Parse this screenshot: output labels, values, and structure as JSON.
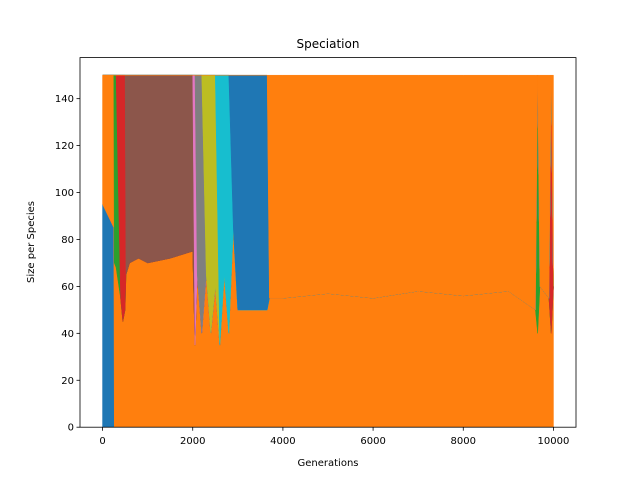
{
  "chart_data": {
    "type": "stacked_area",
    "title": "Speciation",
    "x_label": "Generations",
    "y_label": "Size per Species",
    "x": [
      0,
      250,
      260,
      300,
      400,
      450,
      500,
      520,
      600,
      800,
      1000,
      1500,
      2000,
      2050,
      2100,
      2200,
      2300,
      2400,
      2500,
      2600,
      2700,
      2800,
      2900,
      3000,
      3500,
      3650,
      3700,
      4000,
      5000,
      6000,
      7000,
      8000,
      9000,
      9600,
      9650,
      9700,
      9900,
      9950,
      10000
    ],
    "series": [
      {
        "color": "#1f77b4",
        "values": [
          95,
          85,
          0,
          0,
          0,
          0,
          0,
          0,
          0,
          0,
          0,
          0,
          0,
          0,
          0,
          0,
          0,
          0,
          0,
          0,
          0,
          0,
          0,
          0,
          0,
          0,
          0,
          0,
          0,
          0,
          0,
          0,
          0,
          0,
          0,
          0,
          0,
          0,
          0
        ]
      },
      {
        "color": "#ff7f0e",
        "values": [
          55,
          65,
          70,
          68,
          55,
          45,
          50,
          65,
          70,
          72,
          70,
          72,
          75,
          35,
          65,
          40,
          65,
          40,
          60,
          35,
          65,
          40,
          85,
          50,
          50,
          50,
          55,
          55,
          57,
          55,
          58,
          56,
          58,
          50,
          40,
          60,
          55,
          40,
          60
        ]
      },
      {
        "color": "#2ca02c",
        "values": [
          0,
          0,
          80,
          82,
          0,
          0,
          0,
          0,
          0,
          0,
          0,
          0,
          0,
          0,
          0,
          0,
          0,
          0,
          0,
          0,
          0,
          0,
          0,
          0,
          0,
          0,
          0,
          0,
          0,
          0,
          0,
          0,
          0,
          0,
          110,
          0,
          0,
          0,
          0
        ]
      },
      {
        "color": "#d62728",
        "values": [
          0,
          0,
          0,
          0,
          95,
          105,
          100,
          0,
          0,
          0,
          0,
          0,
          0,
          0,
          0,
          0,
          0,
          0,
          0,
          0,
          0,
          0,
          0,
          0,
          0,
          0,
          0,
          0,
          0,
          0,
          0,
          0,
          0,
          0,
          0,
          0,
          0,
          110,
          0
        ]
      },
      {
        "color": "#8c564b",
        "values": [
          0,
          0,
          0,
          0,
          0,
          0,
          0,
          85,
          80,
          78,
          80,
          78,
          75,
          0,
          0,
          0,
          0,
          0,
          0,
          0,
          0,
          0,
          0,
          0,
          0,
          0,
          0,
          0,
          0,
          0,
          0,
          0,
          0,
          0,
          0,
          0,
          0,
          0,
          0
        ]
      },
      {
        "color": "#e377c2",
        "values": [
          0,
          0,
          0,
          0,
          0,
          0,
          0,
          0,
          0,
          0,
          0,
          0,
          0,
          115,
          0,
          0,
          0,
          0,
          0,
          0,
          0,
          0,
          0,
          0,
          0,
          0,
          0,
          0,
          0,
          0,
          0,
          0,
          0,
          0,
          0,
          0,
          0,
          0,
          0
        ]
      },
      {
        "color": "#7f7f7f",
        "values": [
          0,
          0,
          0,
          0,
          0,
          0,
          0,
          0,
          0,
          0,
          0,
          0,
          0,
          0,
          85,
          110,
          0,
          0,
          0,
          0,
          0,
          0,
          0,
          0,
          0,
          0,
          0,
          0,
          0,
          0,
          0,
          0,
          0,
          0,
          0,
          0,
          0,
          0,
          0
        ]
      },
      {
        "color": "#bcbd22",
        "values": [
          0,
          0,
          0,
          0,
          0,
          0,
          0,
          0,
          0,
          0,
          0,
          0,
          0,
          0,
          0,
          0,
          85,
          110,
          90,
          0,
          0,
          0,
          0,
          0,
          0,
          0,
          0,
          0,
          0,
          0,
          0,
          0,
          0,
          0,
          0,
          0,
          0,
          0,
          0
        ]
      },
      {
        "color": "#17becf",
        "values": [
          0,
          0,
          0,
          0,
          0,
          0,
          0,
          0,
          0,
          0,
          0,
          0,
          0,
          0,
          0,
          0,
          0,
          0,
          0,
          115,
          85,
          110,
          0,
          0,
          0,
          0,
          0,
          0,
          0,
          0,
          0,
          0,
          0,
          0,
          0,
          0,
          0,
          0,
          0
        ]
      },
      {
        "color": "#1f77b4",
        "values": [
          0,
          0,
          0,
          0,
          0,
          0,
          0,
          0,
          0,
          0,
          0,
          0,
          0,
          0,
          0,
          0,
          0,
          0,
          0,
          0,
          0,
          0,
          65,
          100,
          100,
          100,
          0,
          0,
          0,
          0,
          0,
          0,
          0,
          0,
          0,
          0,
          0,
          0,
          0
        ]
      },
      {
        "color": "#ff7f0e",
        "values": [
          0,
          0,
          0,
          0,
          0,
          0,
          0,
          0,
          0,
          0,
          0,
          0,
          0,
          0,
          0,
          0,
          0,
          0,
          0,
          0,
          0,
          0,
          0,
          0,
          0,
          0,
          95,
          95,
          93,
          95,
          92,
          94,
          92,
          100,
          0,
          90,
          95,
          0,
          90
        ]
      }
    ],
    "xlim": [
      -500,
      10500
    ],
    "ylim": [
      0,
      157.5
    ],
    "xticks": [
      0,
      2000,
      4000,
      6000,
      8000,
      10000
    ],
    "yticks": [
      0,
      20,
      40,
      60,
      80,
      100,
      120,
      140
    ]
  }
}
